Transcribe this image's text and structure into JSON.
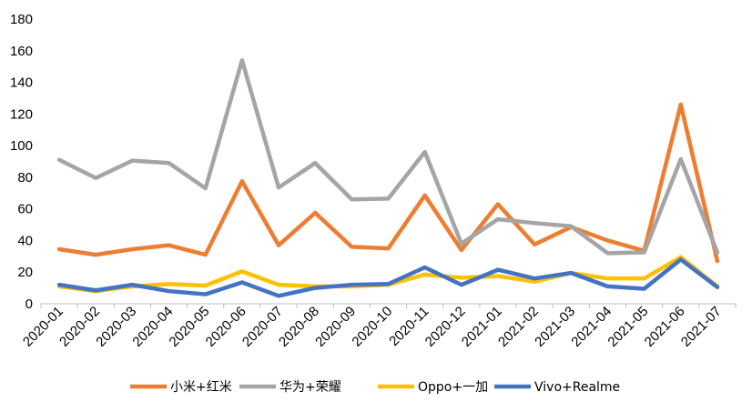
{
  "chart_data": {
    "type": "line",
    "title": "",
    "xlabel": "",
    "ylabel": "",
    "ylim": [
      0,
      180
    ],
    "yticks": [
      0,
      20,
      40,
      60,
      80,
      100,
      120,
      140,
      160,
      180
    ],
    "grid": false,
    "legend_position": "bottom",
    "categories": [
      "2020-01",
      "2020-02",
      "2020-03",
      "2020-04",
      "2020-05",
      "2020-06",
      "2020-07",
      "2020-08",
      "2020-09",
      "2020-10",
      "2020-11",
      "2020-12",
      "2021-01",
      "2021-02",
      "2021-03",
      "2021-04",
      "2021-05",
      "2021-06",
      "2021-07"
    ],
    "series": [
      {
        "name": "小米+红米",
        "color": "#ED7D31",
        "values": [
          34.5,
          31,
          34.5,
          37,
          31,
          77.5,
          37,
          57.5,
          36,
          35,
          68.5,
          34,
          63,
          37.5,
          48.5,
          40,
          33.5,
          126,
          27
        ]
      },
      {
        "name": "华为+荣耀",
        "color": "#A5A5A5",
        "values": [
          91,
          79.5,
          90.5,
          89,
          73,
          154,
          73.5,
          89,
          66,
          66.5,
          96,
          38,
          53.5,
          51,
          49,
          32,
          32.5,
          91.5,
          32.5
        ]
      },
      {
        "name": "Oppo+一加",
        "color": "#FFC000",
        "values": [
          11,
          8,
          11,
          12.5,
          11.5,
          20.5,
          12,
          11,
          11,
          12,
          18.5,
          16.5,
          17.5,
          14,
          19.5,
          16,
          16,
          29.5,
          11
        ]
      },
      {
        "name": "Vivo+Realme",
        "color": "#4472C4",
        "values": [
          12,
          8.5,
          12,
          8,
          6,
          13.5,
          5,
          10,
          12,
          12.5,
          23,
          12,
          21.5,
          16,
          19.5,
          11,
          9.5,
          28,
          10.5
        ]
      }
    ]
  }
}
